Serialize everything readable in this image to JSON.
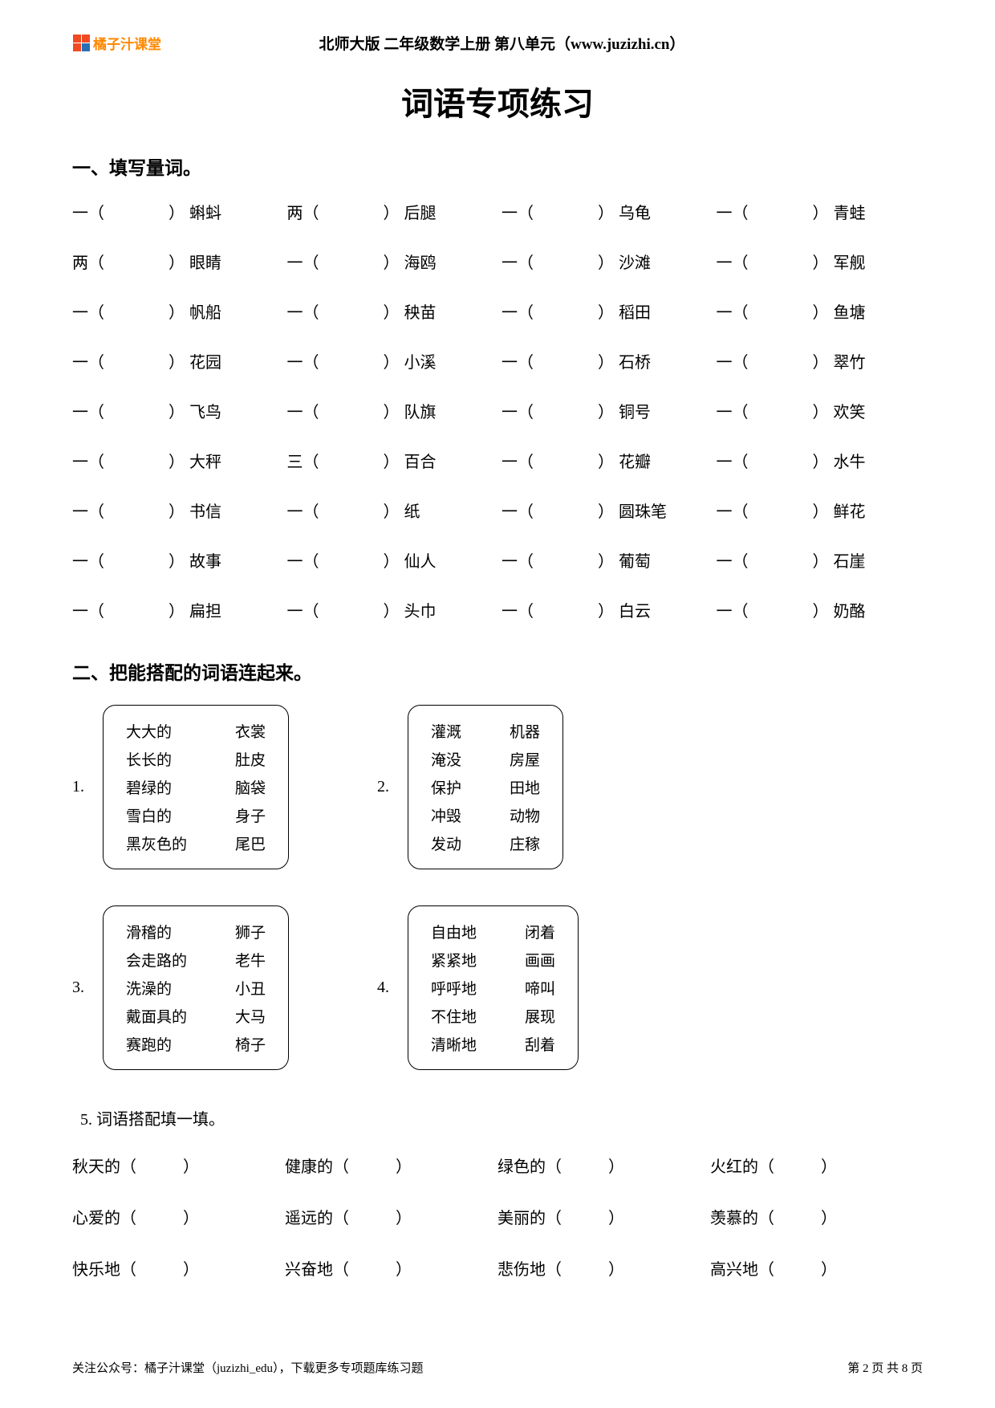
{
  "header": {
    "logo_text": "橘子汁课堂",
    "logo_colors": [
      "#ef4a22",
      "#ef4a22",
      "#ef4a22",
      "#2a6fb5"
    ],
    "meta": "北师大版 二年级数学上册 第八单元（www.juzizhi.cn）"
  },
  "title": "词语专项练习",
  "section1": {
    "title": "一、填写量词。",
    "items": [
      {
        "pre": "一",
        "word": "蝌蚪"
      },
      {
        "pre": "两",
        "word": "后腿"
      },
      {
        "pre": "一",
        "word": "乌龟"
      },
      {
        "pre": "一",
        "word": "青蛙"
      },
      {
        "pre": "两",
        "word": "眼睛"
      },
      {
        "pre": "一",
        "word": "海鸥"
      },
      {
        "pre": "一",
        "word": "沙滩"
      },
      {
        "pre": "一",
        "word": "军舰"
      },
      {
        "pre": "一",
        "word": "帆船"
      },
      {
        "pre": "一",
        "word": "秧苗"
      },
      {
        "pre": "一",
        "word": "稻田"
      },
      {
        "pre": "一",
        "word": "鱼塘"
      },
      {
        "pre": "一",
        "word": "花园"
      },
      {
        "pre": "一",
        "word": "小溪"
      },
      {
        "pre": "一",
        "word": "石桥"
      },
      {
        "pre": "一",
        "word": "翠竹"
      },
      {
        "pre": "一",
        "word": "飞鸟"
      },
      {
        "pre": "一",
        "word": "队旗"
      },
      {
        "pre": "一",
        "word": "铜号"
      },
      {
        "pre": "一",
        "word": "欢笑"
      },
      {
        "pre": "一",
        "word": "大秤"
      },
      {
        "pre": "三",
        "word": "百合"
      },
      {
        "pre": "一",
        "word": "花瓣"
      },
      {
        "pre": "一",
        "word": "水牛"
      },
      {
        "pre": "一",
        "word": "书信"
      },
      {
        "pre": "一",
        "word": "纸"
      },
      {
        "pre": "一",
        "word": "圆珠笔"
      },
      {
        "pre": "一",
        "word": "鲜花"
      },
      {
        "pre": "一",
        "word": "故事"
      },
      {
        "pre": "一",
        "word": "仙人"
      },
      {
        "pre": "一",
        "word": "葡萄"
      },
      {
        "pre": "一",
        "word": "石崖"
      },
      {
        "pre": "一",
        "word": "扁担"
      },
      {
        "pre": "一",
        "word": "头巾"
      },
      {
        "pre": "一",
        "word": "白云"
      },
      {
        "pre": "一",
        "word": "奶酪"
      }
    ]
  },
  "section2": {
    "title": "二、把能搭配的词语连起来。",
    "groups": [
      {
        "num": "1.",
        "left": [
          "大大的",
          "长长的",
          "碧绿的",
          "雪白的",
          "黑灰色的"
        ],
        "right": [
          "衣裳",
          "肚皮",
          "脑袋",
          "身子",
          "尾巴"
        ]
      },
      {
        "num": "2.",
        "left": [
          "灌溉",
          "淹没",
          "保护",
          "冲毁",
          "发动"
        ],
        "right": [
          "机器",
          "房屋",
          "田地",
          "动物",
          "庄稼"
        ]
      },
      {
        "num": "3.",
        "left": [
          "滑稽的",
          "会走路的",
          "洗澡的",
          "戴面具的",
          "赛跑的"
        ],
        "right": [
          "狮子",
          "老牛",
          "小丑",
          "大马",
          "椅子"
        ]
      },
      {
        "num": "4.",
        "left": [
          "自由地",
          "紧紧地",
          "呼呼地",
          "不住地",
          "清晰地"
        ],
        "right": [
          "闭着",
          "画画",
          "啼叫",
          "展现",
          "刮着"
        ]
      }
    ]
  },
  "q5": {
    "title": "5.  词语搭配填一填。",
    "items": [
      "秋天的（",
      "健康的（",
      "绿色的（",
      "火红的（",
      "心爱的（",
      "遥远的（",
      "美丽的（",
      "羡慕的（",
      "快乐地（",
      "兴奋地（",
      "悲伤地（",
      "高兴地（"
    ]
  },
  "footer": {
    "left": "关注公众号：橘子汁课堂（juzizhi_edu），下载更多专项题库练习题",
    "right": "第 2 页 共 8 页"
  },
  "colors": {
    "text": "#000000",
    "background": "#ffffff",
    "logo_orange": "#ff8800"
  }
}
